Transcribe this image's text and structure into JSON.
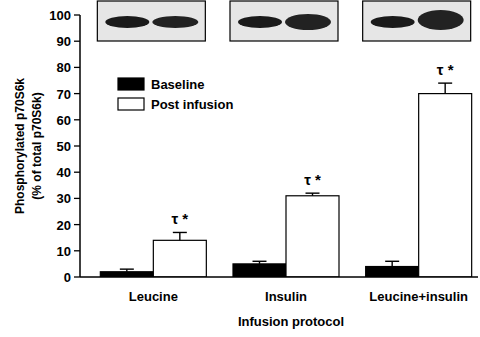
{
  "chart_data": {
    "type": "bar",
    "x_label": "Infusion protocol",
    "y_label": [
      "Phosphorylated p70S6k",
      "(% of total p70S6k)"
    ],
    "categories": [
      "Leucine",
      "Insulin",
      "Leucine+insulin"
    ],
    "series": [
      {
        "name": "Baseline",
        "color": "#000000",
        "values": [
          2,
          5,
          4
        ],
        "errors": [
          1,
          1,
          2
        ]
      },
      {
        "name": "Post infusion",
        "color": "#ffffff",
        "values": [
          14,
          31,
          70
        ],
        "errors": [
          3,
          1,
          4
        ]
      }
    ],
    "annotations": [
      "τ *",
      "τ *",
      "τ *"
    ],
    "ylim": [
      0,
      100
    ],
    "yticks": [
      0,
      10,
      20,
      30,
      40,
      50,
      60,
      70,
      80,
      90,
      100
    ],
    "legend": "upper left",
    "grid": false
  }
}
